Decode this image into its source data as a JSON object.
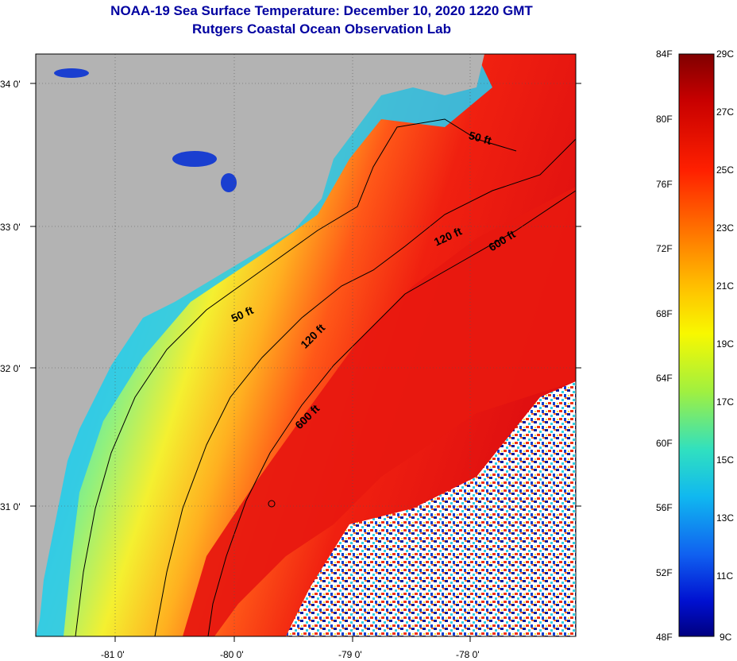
{
  "header": {
    "title": "NOAA-19 Sea Surface Temperature:  December 10, 2020 1220 GMT",
    "subtitle": "Rutgers Coastal Ocean Observation Lab"
  },
  "map": {
    "lat_labels": [
      "34 0'",
      "33 0'",
      "32 0'",
      "31 0'"
    ],
    "lon_labels": [
      "-81 0'",
      "-80 0'",
      "-79 0'",
      "-78 0'"
    ],
    "depth_labels": {
      "d50_north": "50 ft",
      "d50_south": "50 ft",
      "d120_north": "120 ft",
      "d120_south": "120 ft",
      "d600_north": "600 ft",
      "d600_south": "600 ft"
    },
    "colors": {
      "land": "#b3b3b3",
      "cold": "#1a4fd9",
      "shelf": "#2ad4e8",
      "mid": "#f0f030",
      "warm": "#ff3a10",
      "gulfstream": "#e8180e"
    }
  },
  "colorbar": {
    "fahrenheit": [
      "84F",
      "80F",
      "76F",
      "72F",
      "68F",
      "64F",
      "60F",
      "56F",
      "52F",
      "48F"
    ],
    "celsius": [
      "29C",
      "27C",
      "25C",
      "23C",
      "21C",
      "19C",
      "17C",
      "15C",
      "13C",
      "11C",
      "9C"
    ]
  }
}
